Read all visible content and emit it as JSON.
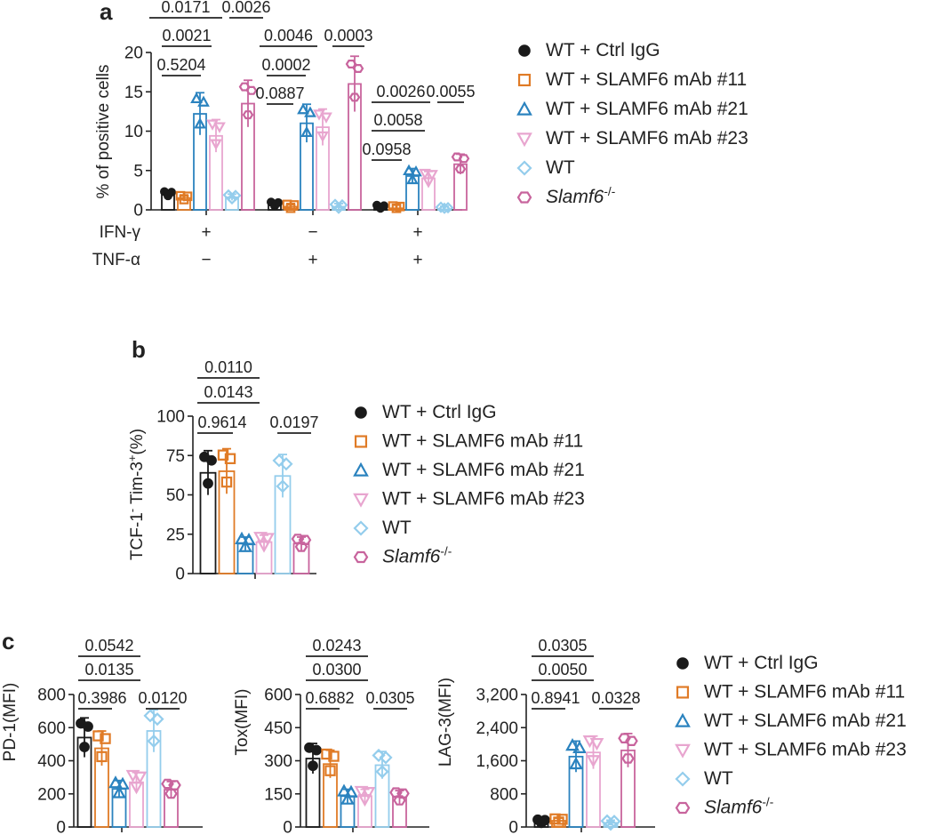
{
  "colors": {
    "ctrl": "#1a1a1a",
    "m11": "#e07b26",
    "m21": "#2b83bf",
    "m23": "#e8a5cf",
    "wt": "#94cdec",
    "ko": "#c8649d"
  },
  "legend_items": [
    {
      "key": "ctrl",
      "label": "WT + Ctrl IgG",
      "marker": "circle"
    },
    {
      "key": "m11",
      "label": "WT + SLAMF6 mAb #11",
      "marker": "square"
    },
    {
      "key": "m21",
      "label": "WT + SLAMF6 mAb #21",
      "marker": "triangle-up"
    },
    {
      "key": "m23",
      "label": "WT + SLAMF6 mAb #23",
      "marker": "triangle-down"
    },
    {
      "key": "wt",
      "label": "WT",
      "marker": "diamond"
    },
    {
      "key": "ko",
      "label": "Slamf6-/-",
      "marker": "hexagon",
      "italic_part": "Slamf6",
      "superscript": "-/-"
    }
  ],
  "chart_data": [
    {
      "panel": "a",
      "type": "bar",
      "ylabel": "% of positive cells",
      "ylim": [
        0,
        20
      ],
      "yticks": [
        "0",
        "5",
        "10",
        "15",
        "20"
      ],
      "treatment_labels": [
        "IFN-γ",
        "TNF-α"
      ],
      "groups": [
        {
          "ifn": "+",
          "tnf": "−",
          "values": [
            2.0,
            1.5,
            12.2,
            9.4,
            1.6,
            13.5
          ]
        },
        {
          "ifn": "−",
          "tnf": "+",
          "values": [
            0.7,
            0.4,
            11.0,
            10.5,
            0.4,
            16.0
          ]
        },
        {
          "ifn": "+",
          "tnf": "+",
          "values": [
            0.3,
            0.2,
            4.3,
            4.0,
            0.05,
            5.8
          ]
        }
      ],
      "pvalues": [
        {
          "text": "0.0171",
          "group": 0,
          "from": 0,
          "to": 2
        },
        {
          "text": "0.0026",
          "group": 0,
          "from": 4,
          "to": 5
        },
        {
          "text": "0.0021",
          "group": 0,
          "from": 0,
          "to": 2
        },
        {
          "text": "0.5204",
          "group": 0,
          "from": 0,
          "to": 1
        },
        {
          "text": "0.0046",
          "group": 1,
          "from": 0,
          "to": 2
        },
        {
          "text": "0.0003",
          "group": 1,
          "from": 4,
          "to": 5
        },
        {
          "text": "0.0002",
          "group": 1,
          "from": 0,
          "to": 2
        },
        {
          "text": "0.0887",
          "group": 1,
          "from": 0,
          "to": 1
        },
        {
          "text": "0.0026",
          "group": 2,
          "from": 0,
          "to": 2
        },
        {
          "text": "0.0055",
          "group": 2,
          "from": 4,
          "to": 5
        },
        {
          "text": "0.0058",
          "group": 2,
          "from": 0,
          "to": 2
        },
        {
          "text": "0.0958",
          "group": 2,
          "from": 0,
          "to": 1
        }
      ]
    },
    {
      "panel": "b",
      "type": "bar",
      "ylabel": "TCF-1- Tim-3+ (%)",
      "ylim": [
        0,
        100
      ],
      "yticks": [
        "0",
        "25",
        "50",
        "75",
        "100"
      ],
      "values": [
        64,
        65,
        19,
        20,
        62,
        19
      ],
      "pvalues": [
        {
          "text": "0.0110",
          "from": 0,
          "to": 2
        },
        {
          "text": "0.0143",
          "from": 0,
          "to": 2
        },
        {
          "text": "0.9614",
          "from": 0,
          "to": 1
        },
        {
          "text": "0.0197",
          "from": 4,
          "to": 5
        }
      ]
    },
    {
      "panel": "c1",
      "type": "bar",
      "ylabel": "PD-1(MFI)",
      "ylim": [
        0,
        800
      ],
      "yticks": [
        "0",
        "200",
        "400",
        "600",
        "800"
      ],
      "values": [
        540,
        475,
        230,
        270,
        580,
        225
      ],
      "pvalues": [
        {
          "text": "0.0542",
          "from": 0,
          "to": 2
        },
        {
          "text": "0.0135",
          "from": 0,
          "to": 2
        },
        {
          "text": "0.3986",
          "from": 0,
          "to": 1
        },
        {
          "text": "0.0120",
          "from": 4,
          "to": 5
        }
      ]
    },
    {
      "panel": "c2",
      "type": "bar",
      "ylabel": "Tox(MFI)",
      "ylim": [
        0,
        600
      ],
      "yticks": [
        "0",
        "150",
        "300",
        "450",
        "600"
      ],
      "values": [
        310,
        285,
        140,
        140,
        280,
        135
      ],
      "pvalues": [
        {
          "text": "0.0243",
          "from": 0,
          "to": 2
        },
        {
          "text": "0.0300",
          "from": 0,
          "to": 2
        },
        {
          "text": "0.6882",
          "from": 0,
          "to": 1
        },
        {
          "text": "0.0305",
          "from": 4,
          "to": 5
        }
      ]
    },
    {
      "panel": "c3",
      "type": "bar",
      "ylabel": "LAG-3(MFI)",
      "ylim": [
        0,
        3200
      ],
      "yticks": [
        "0",
        "800",
        "1,600",
        "2,400",
        "3,200"
      ],
      "values": [
        130,
        150,
        1700,
        1800,
        100,
        1850
      ],
      "pvalues": [
        {
          "text": "0.0305",
          "from": 0,
          "to": 2
        },
        {
          "text": "0.0050",
          "from": 0,
          "to": 2
        },
        {
          "text": "0.8941",
          "from": 0,
          "to": 1
        },
        {
          "text": "0.0328",
          "from": 4,
          "to": 5
        }
      ]
    }
  ],
  "panel_labels": {
    "a": "a",
    "b": "b",
    "c": "c"
  }
}
